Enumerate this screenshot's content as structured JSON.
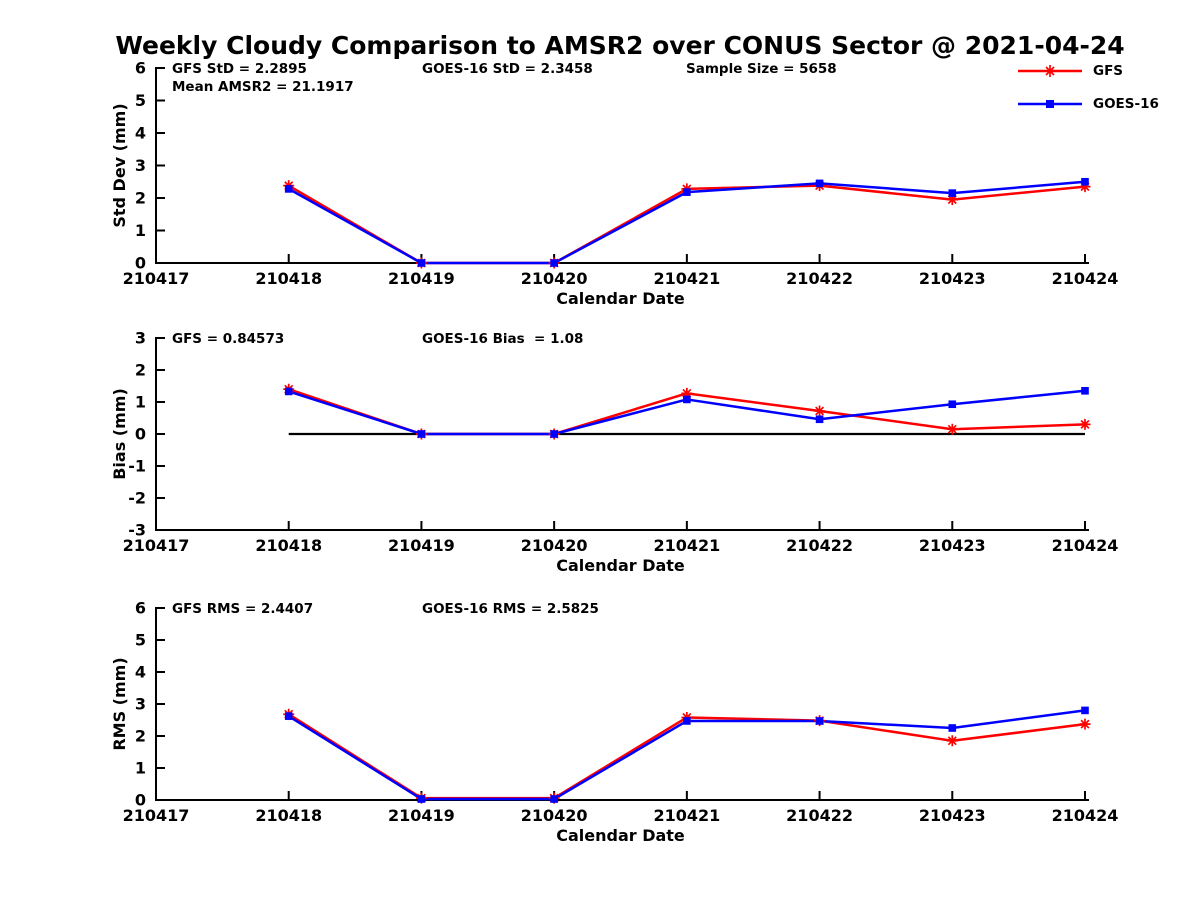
{
  "figure_title": "Weekly Cloudy Comparison to AMSR2 over CONUS Sector @ 2021-04-24",
  "colors": {
    "gfs": "#ff0000",
    "goes16": "#0000ff",
    "axis": "#000000",
    "background": "#ffffff"
  },
  "legend": {
    "items": [
      {
        "label": "GFS",
        "color": "#ff0000",
        "marker": "asterisk"
      },
      {
        "label": "GOES-16",
        "color": "#0000ff",
        "marker": "square"
      }
    ]
  },
  "x_axis": {
    "label": "Calendar Date",
    "tick_labels": [
      "210417",
      "210418",
      "210419",
      "210420",
      "210421",
      "210422",
      "210423",
      "210424"
    ]
  },
  "chart_data": [
    {
      "type": "line",
      "name": "std-dev",
      "ylabel": "Std Dev (mm)",
      "ylim": [
        0,
        6
      ],
      "yticks": [
        0,
        1,
        2,
        3,
        4,
        5,
        6
      ],
      "annotations": [
        {
          "text": "GFS StD = 2.2895",
          "col": 0,
          "row": 0
        },
        {
          "text": "Mean AMSR2 = 21.1917",
          "col": 0,
          "row": 1
        },
        {
          "text": "GOES-16 StD = 2.3458",
          "col": 1,
          "row": 0
        },
        {
          "text": "Sample Size = 5658",
          "col": 2,
          "row": 0
        }
      ],
      "x": [
        "210418",
        "210419",
        "210420",
        "210421",
        "210422",
        "210423",
        "210424"
      ],
      "series": [
        {
          "name": "GFS",
          "color": "#ff0000",
          "marker": "asterisk",
          "values": [
            2.38,
            0,
            0,
            2.28,
            2.38,
            1.95,
            2.35
          ]
        },
        {
          "name": "GOES-16",
          "color": "#0000ff",
          "marker": "square",
          "values": [
            2.28,
            0,
            0,
            2.18,
            2.45,
            2.15,
            2.5
          ]
        }
      ]
    },
    {
      "type": "line",
      "name": "bias",
      "ylabel": "Bias (mm)",
      "ylim": [
        -3,
        3
      ],
      "yticks": [
        -3,
        -2,
        -1,
        0,
        1,
        2,
        3
      ],
      "zero_line": true,
      "annotations": [
        {
          "text": "GFS = 0.84573",
          "col": 0,
          "row": 0
        },
        {
          "text": "GOES-16 Bias  = 1.08",
          "col": 1,
          "row": 0
        }
      ],
      "x": [
        "210418",
        "210419",
        "210420",
        "210421",
        "210422",
        "210423",
        "210424"
      ],
      "series": [
        {
          "name": "GFS",
          "color": "#ff0000",
          "marker": "asterisk",
          "values": [
            1.4,
            0,
            0,
            1.27,
            0.72,
            0.15,
            0.3
          ]
        },
        {
          "name": "GOES-16",
          "color": "#0000ff",
          "marker": "square",
          "values": [
            1.33,
            0,
            0,
            1.08,
            0.46,
            0.93,
            1.35
          ]
        }
      ]
    },
    {
      "type": "line",
      "name": "rms",
      "ylabel": "RMS (mm)",
      "ylim": [
        0,
        6
      ],
      "yticks": [
        0,
        1,
        2,
        3,
        4,
        5,
        6
      ],
      "annotations": [
        {
          "text": "GFS RMS = 2.4407",
          "col": 0,
          "row": 0
        },
        {
          "text": "GOES-16 RMS = 2.5825",
          "col": 1,
          "row": 0
        }
      ],
      "x": [
        "210418",
        "210419",
        "210420",
        "210421",
        "210422",
        "210423",
        "210424"
      ],
      "series": [
        {
          "name": "GFS",
          "color": "#ff0000",
          "marker": "asterisk",
          "values": [
            2.68,
            0.06,
            0.06,
            2.58,
            2.48,
            1.85,
            2.37
          ]
        },
        {
          "name": "GOES-16",
          "color": "#0000ff",
          "marker": "square",
          "values": [
            2.62,
            0.03,
            0.03,
            2.47,
            2.47,
            2.25,
            2.8
          ]
        }
      ]
    }
  ]
}
